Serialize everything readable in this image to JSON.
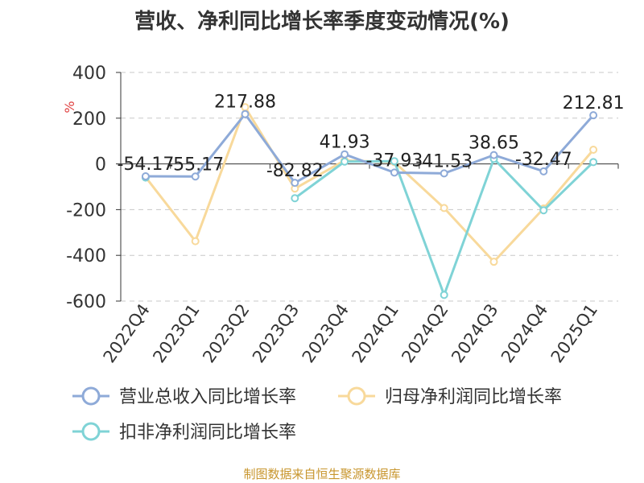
{
  "chart_data": {
    "type": "line",
    "title": "营收、净利同比增长率季度变动情况(%)",
    "ylabel": "%",
    "categories": [
      "2022Q4",
      "2023Q1",
      "2023Q2",
      "2023Q3",
      "2023Q4",
      "2024Q1",
      "2024Q2",
      "2024Q3",
      "2024Q4",
      "2025Q1"
    ],
    "ylim": [
      -600,
      400
    ],
    "yticks": [
      400,
      200,
      0,
      -200,
      -400,
      -600
    ],
    "grid": true,
    "legend_position": "bottom",
    "series": [
      {
        "name": "营业总收入同比增长率",
        "color": "#8eaad8",
        "values": [
          -54.17,
          -55.17,
          217.88,
          -82.82,
          41.93,
          -37.93,
          -41.53,
          38.65,
          -32.47,
          212.81
        ],
        "labels": [
          "-54.17",
          "-55.17",
          "217.88",
          "-82.82",
          "41.93",
          "-37.93",
          "-41.53",
          "38.65",
          "-32.47",
          "212.81"
        ]
      },
      {
        "name": "归母净利润同比增长率",
        "color": "#f8d99b",
        "values": [
          -58,
          -338,
          248,
          -108,
          15,
          8,
          -193,
          -428,
          -195,
          62
        ]
      },
      {
        "name": "扣非净利润同比增长率",
        "color": "#7fd3d6",
        "values": [
          -60,
          null,
          null,
          -150,
          10,
          12,
          -573,
          22,
          -203,
          8
        ]
      }
    ]
  },
  "source": "制图数据来自恒生聚源数据库"
}
